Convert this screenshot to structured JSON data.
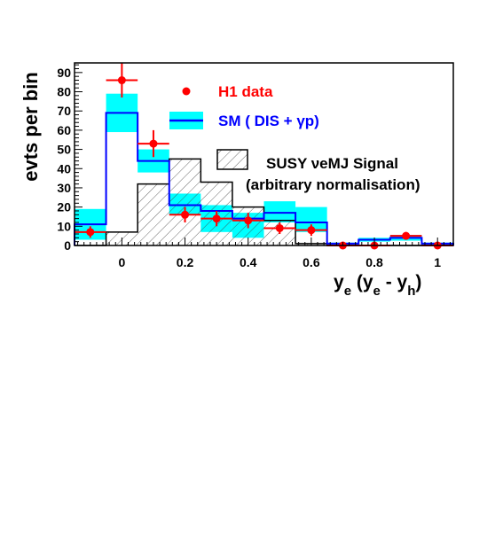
{
  "chart_data": {
    "type": "histogram",
    "ylabel": "evts per bin",
    "xlabel": {
      "main": "y",
      "sub1": "e",
      "mid": " (y",
      "sub2": "e",
      "mid2": " - y",
      "sub3": "h",
      "end": ")"
    },
    "xlim": [
      -0.15,
      1.05
    ],
    "ylim": [
      0,
      95
    ],
    "x_ticks": [
      {
        "value": 0,
        "label": "0"
      },
      {
        "value": 0.2,
        "label": "0.2"
      },
      {
        "value": 0.4,
        "label": "0.4"
      },
      {
        "value": 0.6,
        "label": "0.6"
      },
      {
        "value": 0.8,
        "label": "0.8"
      },
      {
        "value": 1,
        "label": "1"
      }
    ],
    "y_ticks": [
      {
        "value": 0,
        "label": "0"
      },
      {
        "value": 10,
        "label": "10"
      },
      {
        "value": 20,
        "label": "20"
      },
      {
        "value": 30,
        "label": "30"
      },
      {
        "value": 40,
        "label": "40"
      },
      {
        "value": 50,
        "label": "50"
      },
      {
        "value": 60,
        "label": "60"
      },
      {
        "value": 70,
        "label": "70"
      },
      {
        "value": 80,
        "label": "80"
      },
      {
        "value": 90,
        "label": "90"
      }
    ],
    "bin_edges": [
      -0.15,
      -0.05,
      0.05,
      0.15,
      0.25,
      0.35,
      0.45,
      0.55,
      0.65,
      0.75,
      0.85,
      0.95,
      1.05
    ],
    "series": [
      {
        "name": "H1 data",
        "kind": "points",
        "color": "#ff0000",
        "x": [
          -0.1,
          0,
          0.1,
          0.2,
          0.3,
          0.4,
          0.5,
          0.6,
          0.7,
          0.8,
          0.9,
          1.0
        ],
        "y": [
          7,
          86,
          53,
          16,
          14,
          13,
          9,
          8,
          0,
          0,
          5,
          0
        ],
        "yerr": [
          3,
          9,
          7,
          4,
          4,
          4,
          3,
          3,
          0,
          0,
          2,
          0
        ]
      },
      {
        "name": "SM ( DIS + γp)",
        "kind": "step",
        "color": "#0000ff",
        "band_color": "#00ffff",
        "values": [
          11,
          69,
          44,
          21,
          18,
          14,
          17,
          12,
          1,
          3,
          4,
          1
        ],
        "band_low": [
          3,
          59,
          38,
          16,
          7,
          4,
          12,
          7,
          0.5,
          2,
          2.5,
          0.5
        ],
        "band_high": [
          19,
          79,
          50,
          27,
          21,
          17,
          23,
          20,
          1.5,
          4,
          5.5,
          1.5
        ]
      },
      {
        "name_prefix": "SUSY ",
        "name_greek": "ν",
        "name_suffix": "eMJ Signal",
        "name_note": "(arbitrary normalisation)",
        "kind": "hatched-step",
        "color": "#000000",
        "values": [
          0,
          7,
          32,
          45,
          33,
          20,
          13,
          1,
          0,
          0,
          0,
          0
        ]
      }
    ],
    "legend": {
      "placement": "inside-top-right",
      "h1_label": "H1 data",
      "sm_label": "SM ( DIS + γp)",
      "susy_label_line1": "SUSY νeMJ Signal",
      "susy_label_line2": "(arbitrary normalisation)"
    },
    "grid": false
  }
}
